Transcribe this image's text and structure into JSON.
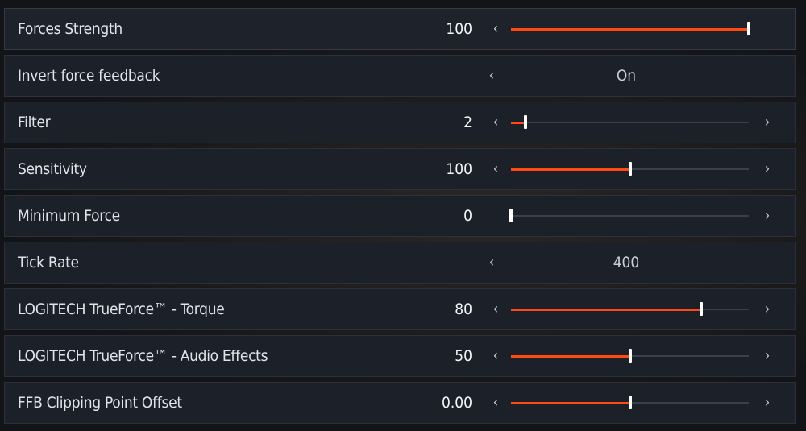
{
  "accent_color": "#ff4a14",
  "settings": [
    {
      "label": "Forces Strength",
      "type": "slider",
      "value": "100",
      "fraction": 1.0,
      "left_arrow": true,
      "right_arrow": false,
      "selected": true
    },
    {
      "label": "Invert force feedback",
      "type": "choice",
      "value": "On",
      "left_arrow": true,
      "right_arrow": false
    },
    {
      "label": "Filter",
      "type": "slider",
      "value": "2",
      "fraction": 0.06,
      "left_arrow": true,
      "right_arrow": true
    },
    {
      "label": "Sensitivity",
      "type": "slider",
      "value": "100",
      "fraction": 0.5,
      "left_arrow": true,
      "right_arrow": true
    },
    {
      "label": "Minimum Force",
      "type": "slider",
      "value": "0",
      "fraction": 0.0,
      "left_arrow": false,
      "right_arrow": true
    },
    {
      "label": "Tick Rate",
      "type": "choice",
      "value": "400",
      "left_arrow": true,
      "right_arrow": false
    },
    {
      "label": "LOGITECH TrueForce™ - Torque",
      "type": "slider",
      "value": "80",
      "fraction": 0.8,
      "left_arrow": true,
      "right_arrow": true
    },
    {
      "label": "LOGITECH TrueForce™ - Audio Effects",
      "type": "slider",
      "value": "50",
      "fraction": 0.5,
      "left_arrow": true,
      "right_arrow": true
    },
    {
      "label": "FFB Clipping Point Offset",
      "type": "slider",
      "value": "0.00",
      "fraction": 0.5,
      "left_arrow": true,
      "right_arrow": true
    }
  ],
  "icons": {
    "left": "chevron-left-icon",
    "right": "chevron-right-icon"
  },
  "glyphs": {
    "left": "‹",
    "right": "›"
  }
}
